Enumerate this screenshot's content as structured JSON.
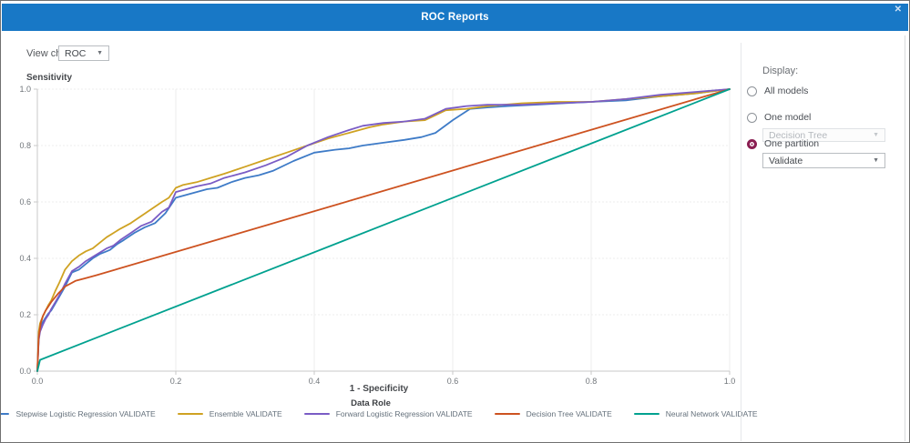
{
  "window": {
    "title": "ROC Reports",
    "close_glyph": "✕"
  },
  "toolbar": {
    "view_chart_label": "View chart:",
    "view_chart_value": "ROC"
  },
  "display_panel": {
    "title": "Display:",
    "options": [
      {
        "label": "All models",
        "selected": false
      },
      {
        "label": "One model",
        "selected": false
      },
      {
        "label": "One partition",
        "selected": true
      }
    ],
    "one_model_dropdown": {
      "value": "Decision Tree",
      "disabled": true
    },
    "one_partition_dropdown": {
      "value": "Validate",
      "disabled": false
    }
  },
  "colors": {
    "titlebar": "#1878c6",
    "radio_selected": "#8a1e52",
    "gridline": "#ececec",
    "axis_line": "#c9c9c9",
    "tick_text": "#70757a"
  },
  "chart_data": {
    "type": "line",
    "title": "",
    "xlabel": "1 - Specificity",
    "ylabel": "Sensitivity",
    "xlim": [
      0,
      1
    ],
    "ylim": [
      0,
      1
    ],
    "xticks": [
      0.0,
      0.2,
      0.4,
      0.6,
      0.8,
      1.0
    ],
    "yticks": [
      0.0,
      0.2,
      0.4,
      0.6,
      0.8,
      1.0
    ],
    "grid": true,
    "legend_title": "Data Role",
    "legend_position": "bottom",
    "series": [
      {
        "name": "Stepwise Logistic Regression VALIDATE",
        "color": "#3e7bc7",
        "points": [
          [
            0,
            0
          ],
          [
            0.002,
            0.12
          ],
          [
            0.004,
            0.15
          ],
          [
            0.008,
            0.175
          ],
          [
            0.012,
            0.19
          ],
          [
            0.016,
            0.205
          ],
          [
            0.02,
            0.215
          ],
          [
            0.026,
            0.24
          ],
          [
            0.032,
            0.265
          ],
          [
            0.04,
            0.3
          ],
          [
            0.05,
            0.35
          ],
          [
            0.06,
            0.36
          ],
          [
            0.07,
            0.38
          ],
          [
            0.08,
            0.4
          ],
          [
            0.09,
            0.415
          ],
          [
            0.1,
            0.425
          ],
          [
            0.105,
            0.43
          ],
          [
            0.115,
            0.45
          ],
          [
            0.125,
            0.465
          ],
          [
            0.14,
            0.49
          ],
          [
            0.155,
            0.51
          ],
          [
            0.17,
            0.525
          ],
          [
            0.185,
            0.56
          ],
          [
            0.2,
            0.615
          ],
          [
            0.215,
            0.625
          ],
          [
            0.23,
            0.635
          ],
          [
            0.245,
            0.645
          ],
          [
            0.26,
            0.65
          ],
          [
            0.28,
            0.67
          ],
          [
            0.3,
            0.685
          ],
          [
            0.32,
            0.695
          ],
          [
            0.34,
            0.71
          ],
          [
            0.37,
            0.745
          ],
          [
            0.4,
            0.775
          ],
          [
            0.43,
            0.785
          ],
          [
            0.45,
            0.79
          ],
          [
            0.47,
            0.8
          ],
          [
            0.5,
            0.81
          ],
          [
            0.53,
            0.82
          ],
          [
            0.555,
            0.83
          ],
          [
            0.575,
            0.845
          ],
          [
            0.6,
            0.89
          ],
          [
            0.625,
            0.93
          ],
          [
            0.65,
            0.935
          ],
          [
            0.68,
            0.94
          ],
          [
            0.72,
            0.945
          ],
          [
            0.76,
            0.95
          ],
          [
            0.8,
            0.955
          ],
          [
            0.85,
            0.96
          ],
          [
            0.9,
            0.975
          ],
          [
            0.95,
            0.985
          ],
          [
            1,
            1
          ]
        ]
      },
      {
        "name": "Ensemble VALIDATE",
        "color": "#cfa222",
        "points": [
          [
            0,
            0
          ],
          [
            0.002,
            0.14
          ],
          [
            0.004,
            0.17
          ],
          [
            0.008,
            0.195
          ],
          [
            0.012,
            0.215
          ],
          [
            0.016,
            0.235
          ],
          [
            0.02,
            0.25
          ],
          [
            0.026,
            0.285
          ],
          [
            0.032,
            0.315
          ],
          [
            0.04,
            0.36
          ],
          [
            0.05,
            0.39
          ],
          [
            0.06,
            0.41
          ],
          [
            0.07,
            0.425
          ],
          [
            0.08,
            0.435
          ],
          [
            0.09,
            0.455
          ],
          [
            0.1,
            0.475
          ],
          [
            0.11,
            0.49
          ],
          [
            0.12,
            0.505
          ],
          [
            0.135,
            0.525
          ],
          [
            0.15,
            0.55
          ],
          [
            0.165,
            0.575
          ],
          [
            0.18,
            0.6
          ],
          [
            0.19,
            0.615
          ],
          [
            0.2,
            0.65
          ],
          [
            0.21,
            0.66
          ],
          [
            0.23,
            0.67
          ],
          [
            0.25,
            0.685
          ],
          [
            0.27,
            0.7
          ],
          [
            0.3,
            0.725
          ],
          [
            0.33,
            0.75
          ],
          [
            0.36,
            0.775
          ],
          [
            0.39,
            0.8
          ],
          [
            0.42,
            0.825
          ],
          [
            0.45,
            0.845
          ],
          [
            0.48,
            0.865
          ],
          [
            0.5,
            0.875
          ],
          [
            0.53,
            0.885
          ],
          [
            0.56,
            0.89
          ],
          [
            0.59,
            0.925
          ],
          [
            0.62,
            0.93
          ],
          [
            0.65,
            0.94
          ],
          [
            0.7,
            0.95
          ],
          [
            0.75,
            0.955
          ],
          [
            0.8,
            0.955
          ],
          [
            0.85,
            0.965
          ],
          [
            0.9,
            0.975
          ],
          [
            0.95,
            0.985
          ],
          [
            1,
            1
          ]
        ]
      },
      {
        "name": "Forward Logistic Regression VALIDATE",
        "color": "#7a5cc5",
        "points": [
          [
            0,
            0
          ],
          [
            0.002,
            0.11
          ],
          [
            0.004,
            0.14
          ],
          [
            0.008,
            0.165
          ],
          [
            0.012,
            0.185
          ],
          [
            0.016,
            0.2
          ],
          [
            0.02,
            0.22
          ],
          [
            0.026,
            0.245
          ],
          [
            0.032,
            0.27
          ],
          [
            0.04,
            0.31
          ],
          [
            0.05,
            0.355
          ],
          [
            0.06,
            0.37
          ],
          [
            0.07,
            0.39
          ],
          [
            0.08,
            0.405
          ],
          [
            0.09,
            0.42
          ],
          [
            0.1,
            0.435
          ],
          [
            0.11,
            0.445
          ],
          [
            0.12,
            0.465
          ],
          [
            0.135,
            0.49
          ],
          [
            0.15,
            0.515
          ],
          [
            0.165,
            0.53
          ],
          [
            0.18,
            0.565
          ],
          [
            0.19,
            0.58
          ],
          [
            0.2,
            0.635
          ],
          [
            0.215,
            0.645
          ],
          [
            0.23,
            0.655
          ],
          [
            0.25,
            0.665
          ],
          [
            0.27,
            0.685
          ],
          [
            0.3,
            0.705
          ],
          [
            0.33,
            0.73
          ],
          [
            0.36,
            0.76
          ],
          [
            0.39,
            0.8
          ],
          [
            0.42,
            0.83
          ],
          [
            0.45,
            0.855
          ],
          [
            0.47,
            0.87
          ],
          [
            0.5,
            0.88
          ],
          [
            0.53,
            0.885
          ],
          [
            0.56,
            0.895
          ],
          [
            0.59,
            0.93
          ],
          [
            0.62,
            0.94
          ],
          [
            0.65,
            0.945
          ],
          [
            0.7,
            0.945
          ],
          [
            0.75,
            0.95
          ],
          [
            0.8,
            0.955
          ],
          [
            0.85,
            0.965
          ],
          [
            0.9,
            0.98
          ],
          [
            0.95,
            0.99
          ],
          [
            1,
            1
          ]
        ]
      },
      {
        "name": "Decision Tree VALIDATE",
        "color": "#cd5220",
        "points": [
          [
            0,
            0
          ],
          [
            0.002,
            0.12
          ],
          [
            0.005,
            0.17
          ],
          [
            0.008,
            0.195
          ],
          [
            0.012,
            0.215
          ],
          [
            0.016,
            0.23
          ],
          [
            0.02,
            0.245
          ],
          [
            0.03,
            0.275
          ],
          [
            0.04,
            0.3
          ],
          [
            0.055,
            0.32
          ],
          [
            0.07,
            0.33
          ],
          [
            0.085,
            0.34
          ],
          [
            1,
            1
          ]
        ]
      },
      {
        "name": "Neural Network VALIDATE",
        "color": "#00a18f",
        "points": [
          [
            0,
            0
          ],
          [
            0.004,
            0.04
          ],
          [
            1,
            1
          ]
        ]
      }
    ]
  }
}
